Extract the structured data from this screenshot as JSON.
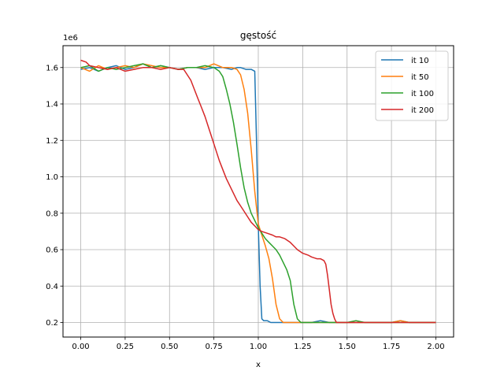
{
  "chart_data": {
    "type": "line",
    "title": "gęstość",
    "xlabel": "x",
    "ylabel": "",
    "y_offset_label": "1e6",
    "xlim": [
      -0.1,
      2.1
    ],
    "ylim": [
      0.12,
      1.72
    ],
    "xticks": [
      0.0,
      0.25,
      0.5,
      0.75,
      1.0,
      1.25,
      1.5,
      1.75,
      2.0
    ],
    "xtick_labels": [
      "0.00",
      "0.25",
      "0.50",
      "0.75",
      "1.00",
      "1.25",
      "1.50",
      "1.75",
      "2.00"
    ],
    "yticks": [
      0.2,
      0.4,
      0.6,
      0.8,
      1.0,
      1.2,
      1.4,
      1.6
    ],
    "ytick_labels": [
      "0.2",
      "0.4",
      "0.6",
      "0.8",
      "1.0",
      "1.2",
      "1.4",
      "1.6"
    ],
    "grid": true,
    "legend_position": "top-right",
    "series": [
      {
        "name": "it 10",
        "color": "#1f77b4",
        "x": [
          0.0,
          0.05,
          0.1,
          0.15,
          0.2,
          0.25,
          0.3,
          0.35,
          0.4,
          0.45,
          0.5,
          0.55,
          0.6,
          0.65,
          0.7,
          0.75,
          0.8,
          0.85,
          0.88,
          0.9,
          0.93,
          0.96,
          0.98,
          0.99,
          1.0,
          1.01,
          1.02,
          1.03,
          1.05,
          1.07,
          1.1,
          1.15,
          1.2,
          1.25,
          1.3,
          1.35,
          1.4,
          1.45,
          1.5,
          1.55,
          1.6,
          1.65,
          1.7,
          1.75,
          1.8,
          1.85,
          1.9,
          1.95,
          2.0
        ],
        "y": [
          1.59,
          1.6,
          1.58,
          1.6,
          1.61,
          1.59,
          1.6,
          1.62,
          1.6,
          1.61,
          1.6,
          1.59,
          1.6,
          1.6,
          1.59,
          1.6,
          1.6,
          1.59,
          1.6,
          1.6,
          1.59,
          1.59,
          1.58,
          1.2,
          0.73,
          0.4,
          0.22,
          0.21,
          0.21,
          0.2,
          0.2,
          0.2,
          0.2,
          0.2,
          0.2,
          0.21,
          0.2,
          0.2,
          0.2,
          0.2,
          0.2,
          0.2,
          0.2,
          0.2,
          0.21,
          0.2,
          0.2,
          0.2,
          0.2
        ]
      },
      {
        "name": "it 50",
        "color": "#ff7f0e",
        "x": [
          0.0,
          0.05,
          0.1,
          0.15,
          0.2,
          0.25,
          0.3,
          0.35,
          0.4,
          0.45,
          0.5,
          0.55,
          0.6,
          0.65,
          0.7,
          0.75,
          0.8,
          0.85,
          0.88,
          0.9,
          0.92,
          0.94,
          0.96,
          0.98,
          1.0,
          1.02,
          1.04,
          1.06,
          1.08,
          1.1,
          1.12,
          1.14,
          1.16,
          1.2,
          1.25,
          1.3,
          1.35,
          1.4,
          1.45,
          1.5,
          1.55,
          1.6,
          1.65,
          1.7,
          1.75,
          1.8,
          1.85,
          1.9,
          1.95,
          2.0
        ],
        "y": [
          1.6,
          1.58,
          1.61,
          1.59,
          1.6,
          1.61,
          1.6,
          1.62,
          1.61,
          1.6,
          1.6,
          1.59,
          1.6,
          1.6,
          1.6,
          1.62,
          1.6,
          1.6,
          1.59,
          1.56,
          1.48,
          1.35,
          1.15,
          0.92,
          0.74,
          0.68,
          0.62,
          0.55,
          0.44,
          0.3,
          0.22,
          0.2,
          0.2,
          0.2,
          0.2,
          0.2,
          0.2,
          0.2,
          0.2,
          0.2,
          0.2,
          0.2,
          0.2,
          0.2,
          0.2,
          0.21,
          0.2,
          0.2,
          0.2,
          0.2
        ]
      },
      {
        "name": "it 100",
        "color": "#2ca02c",
        "x": [
          0.0,
          0.05,
          0.1,
          0.15,
          0.2,
          0.25,
          0.3,
          0.35,
          0.4,
          0.45,
          0.5,
          0.55,
          0.6,
          0.65,
          0.7,
          0.75,
          0.78,
          0.8,
          0.82,
          0.84,
          0.86,
          0.88,
          0.9,
          0.92,
          0.94,
          0.96,
          0.98,
          1.0,
          1.02,
          1.04,
          1.06,
          1.08,
          1.1,
          1.12,
          1.14,
          1.16,
          1.18,
          1.2,
          1.22,
          1.24,
          1.26,
          1.3,
          1.35,
          1.4,
          1.45,
          1.5,
          1.55,
          1.6,
          1.65,
          1.7,
          1.75,
          1.8,
          1.85,
          1.9,
          1.95,
          2.0
        ],
        "y": [
          1.6,
          1.61,
          1.58,
          1.6,
          1.59,
          1.6,
          1.61,
          1.62,
          1.6,
          1.61,
          1.6,
          1.59,
          1.6,
          1.6,
          1.61,
          1.6,
          1.58,
          1.55,
          1.48,
          1.4,
          1.3,
          1.18,
          1.05,
          0.94,
          0.86,
          0.8,
          0.76,
          0.72,
          0.69,
          0.66,
          0.64,
          0.62,
          0.6,
          0.57,
          0.53,
          0.49,
          0.43,
          0.3,
          0.22,
          0.2,
          0.2,
          0.2,
          0.2,
          0.2,
          0.2,
          0.2,
          0.21,
          0.2,
          0.2,
          0.2,
          0.2,
          0.2,
          0.2,
          0.2,
          0.2,
          0.2
        ]
      },
      {
        "name": "it 200",
        "color": "#d62728",
        "x": [
          0.0,
          0.03,
          0.05,
          0.1,
          0.15,
          0.2,
          0.25,
          0.3,
          0.35,
          0.4,
          0.45,
          0.5,
          0.55,
          0.58,
          0.6,
          0.62,
          0.64,
          0.66,
          0.68,
          0.7,
          0.72,
          0.74,
          0.76,
          0.78,
          0.8,
          0.82,
          0.84,
          0.86,
          0.88,
          0.9,
          0.92,
          0.94,
          0.96,
          0.98,
          1.0,
          1.02,
          1.05,
          1.08,
          1.1,
          1.12,
          1.15,
          1.18,
          1.2,
          1.22,
          1.25,
          1.28,
          1.3,
          1.33,
          1.35,
          1.37,
          1.38,
          1.39,
          1.4,
          1.41,
          1.42,
          1.43,
          1.44,
          1.46,
          1.5,
          1.55,
          1.6,
          1.65,
          1.7,
          1.75,
          1.8,
          1.85,
          1.9,
          1.95,
          2.0
        ],
        "y": [
          1.64,
          1.63,
          1.61,
          1.6,
          1.59,
          1.6,
          1.58,
          1.59,
          1.6,
          1.6,
          1.59,
          1.6,
          1.59,
          1.59,
          1.56,
          1.53,
          1.48,
          1.43,
          1.38,
          1.33,
          1.27,
          1.21,
          1.15,
          1.09,
          1.04,
          0.99,
          0.95,
          0.91,
          0.87,
          0.84,
          0.81,
          0.78,
          0.75,
          0.73,
          0.71,
          0.7,
          0.69,
          0.68,
          0.67,
          0.67,
          0.66,
          0.64,
          0.62,
          0.6,
          0.58,
          0.57,
          0.56,
          0.55,
          0.55,
          0.54,
          0.52,
          0.46,
          0.38,
          0.3,
          0.25,
          0.22,
          0.2,
          0.2,
          0.2,
          0.2,
          0.2,
          0.2,
          0.2,
          0.2,
          0.2,
          0.2,
          0.2,
          0.2,
          0.2
        ]
      }
    ]
  }
}
